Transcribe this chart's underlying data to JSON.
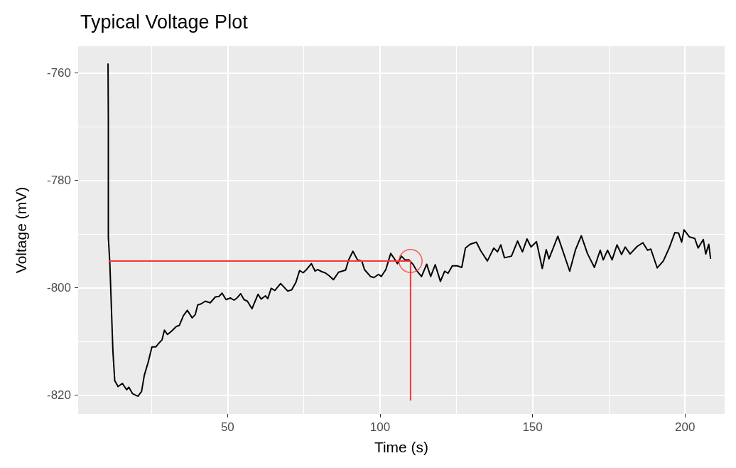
{
  "chart_data": {
    "type": "line",
    "title": "Typical Voltage Plot",
    "xlabel": "Time (s)",
    "ylabel": "Voltage (mV)",
    "xlim": [
      1,
      213
    ],
    "ylim": [
      -823.5,
      -755
    ],
    "xticks": [
      {
        "value": 25,
        "label": null
      },
      50,
      {
        "value": 75,
        "label": null
      },
      100,
      {
        "value": 125,
        "label": null
      },
      150,
      {
        "value": 175,
        "label": null
      },
      200
    ],
    "yticks": [
      -820,
      {
        "value": -810,
        "label": null
      },
      -800,
      {
        "value": -790,
        "label": null
      },
      -780,
      {
        "value": -770,
        "label": null
      },
      -760
    ],
    "grid": true,
    "series": [
      {
        "color": "#000000",
        "x": [
          10.8,
          10.9,
          10.9,
          11.4,
          12.4,
          13,
          14.1,
          15.5,
          16.9,
          17.6,
          18.8,
          20.6,
          21.8,
          22.7,
          23.9,
          25.2,
          26.5,
          27.5,
          28.5,
          29.3,
          30.3,
          31.6,
          33.2,
          34.2,
          35.5,
          36.8,
          38.4,
          39.4,
          40.2,
          41.3,
          42.7,
          44.3,
          46,
          47.2,
          48.2,
          49.5,
          50.9,
          52.1,
          53.1,
          54.3,
          55.4,
          56.5,
          58,
          60,
          61,
          62.4,
          63.2,
          64.3,
          65.5,
          67.4,
          69.7,
          71,
          72.4,
          73.6,
          74.8,
          75.9,
          77.5,
          78.7,
          79.5,
          80.9,
          82,
          83.4,
          84.7,
          86.4,
          88.7,
          89.7,
          91.1,
          92.6,
          94,
          94.9,
          96.9,
          98,
          99.5,
          100.4,
          101.9,
          103.5,
          104.6,
          105.7,
          107,
          108.2,
          109.5,
          110.9,
          112,
          113.6,
          115.3,
          116.6,
          118.1,
          119.8,
          121.2,
          122.3,
          123.7,
          125.3,
          126.8,
          128,
          129.5,
          131.6,
          133,
          135.2,
          137.3,
          138.5,
          139.6,
          140.8,
          143.1,
          145.1,
          146.7,
          148.2,
          149.5,
          151.3,
          153.2,
          154.5,
          155.4,
          158.3,
          162.2,
          164.1,
          166,
          168,
          170.3,
          172.2,
          173.2,
          174.6,
          176.1,
          177.7,
          179.2,
          180.4,
          182,
          184.3,
          186.2,
          187.7,
          188.8,
          190.9,
          192.9,
          194.8,
          196.7,
          197.9,
          198.9,
          199.7,
          201.4,
          203.2,
          204.3,
          206,
          206.8,
          207.8,
          208.4
        ],
        "values": [
          -758.2,
          -768.6,
          -790.6,
          -795.5,
          -811.8,
          -817.3,
          -818.4,
          -817.8,
          -819,
          -818.5,
          -819.7,
          -820.2,
          -819.3,
          -816.3,
          -814,
          -811,
          -811,
          -810.3,
          -809.7,
          -807.9,
          -808.7,
          -808.1,
          -807.2,
          -807,
          -805.2,
          -804.2,
          -805.6,
          -805,
          -803.2,
          -803,
          -802.5,
          -802.8,
          -801.7,
          -801.6,
          -801,
          -802.2,
          -801.9,
          -802.3,
          -801.9,
          -801.1,
          -802.2,
          -802.5,
          -803.9,
          -801.2,
          -802.1,
          -801.5,
          -802,
          -800.1,
          -800.5,
          -799.2,
          -800.6,
          -800.4,
          -799,
          -796.8,
          -797.2,
          -796.6,
          -795.5,
          -796.9,
          -796.6,
          -797,
          -797.2,
          -797.8,
          -798.5,
          -797.1,
          -796.7,
          -794.8,
          -793.2,
          -794.8,
          -795,
          -796.6,
          -797.9,
          -798.1,
          -797.5,
          -797.9,
          -796.6,
          -793.6,
          -794.5,
          -795.5,
          -794.1,
          -794.8,
          -794.8,
          -795.7,
          -796.8,
          -797.9,
          -795.6,
          -797.9,
          -795.7,
          -798.8,
          -796.9,
          -797.3,
          -795.9,
          -795.9,
          -796.2,
          -792.6,
          -791.9,
          -791.5,
          -793.1,
          -795,
          -792.6,
          -793.3,
          -792,
          -794.4,
          -794.1,
          -791.3,
          -793.3,
          -790.9,
          -792.4,
          -791.4,
          -796.4,
          -792.9,
          -794.6,
          -790.4,
          -796.9,
          -792.9,
          -790.3,
          -793.6,
          -796.2,
          -793,
          -794.8,
          -793,
          -794.8,
          -792,
          -793.8,
          -792.4,
          -793.7,
          -792.3,
          -791.6,
          -793,
          -792.8,
          -796.3,
          -795,
          -792.6,
          -789.7,
          -789.8,
          -791.5,
          -789.2,
          -790.5,
          -790.8,
          -792.6,
          -791,
          -793.7,
          -791.9,
          -794.6
        ]
      },
      {
        "type": "line",
        "color": "#ff3333",
        "x": [
          11,
          110,
          110
        ],
        "values": [
          -795,
          -795,
          -821
        ]
      },
      {
        "type": "scatter",
        "marker": "circle",
        "color": "#ff3333",
        "x": [
          110
        ],
        "values": [
          -795
        ]
      }
    ]
  }
}
